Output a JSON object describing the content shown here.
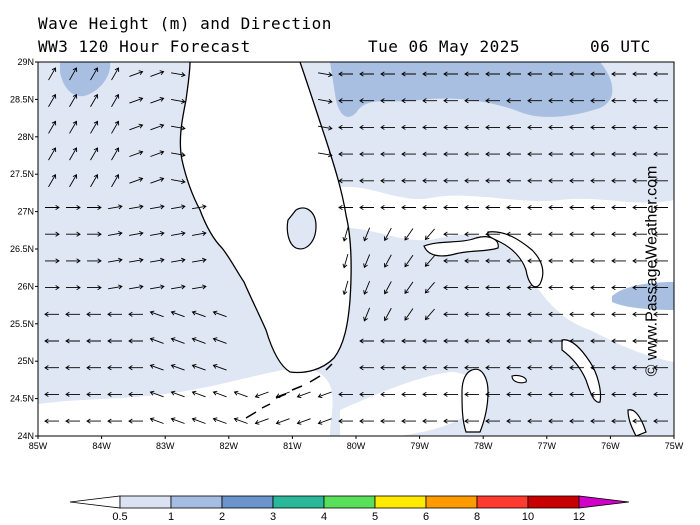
{
  "header": {
    "title": "Wave Height (m) and Direction",
    "subtitle": "WW3 120 Hour Forecast",
    "date": "Tue 06 May 2025",
    "time": "06 UTC"
  },
  "credit": "© www.PassageWeather.com",
  "map": {
    "lat_ticks": [
      "29N",
      "28.5N",
      "28N",
      "27.5N",
      "27N",
      "26.5N",
      "26N",
      "25.5N",
      "25N",
      "24.5N",
      "24N"
    ],
    "lon_ticks": [
      "85W",
      "84W",
      "83W",
      "82W",
      "81W",
      "80W",
      "79W",
      "78W",
      "77W",
      "76W",
      "75W"
    ],
    "extent": {
      "lon_min": -85,
      "lon_max": -75,
      "lat_min": 24,
      "lat_max": 29
    }
  },
  "colorbar": {
    "labels": [
      "0.5",
      "1",
      "2",
      "3",
      "4",
      "5",
      "6",
      "8",
      "10",
      "12"
    ],
    "colors": [
      "#ffffff",
      "#dbe3f3",
      "#a5bde0",
      "#6b94cd",
      "#2bb79a",
      "#59e05a",
      "#ffea00",
      "#ff9a00",
      "#ff3b2f",
      "#c80000",
      "#d000c8"
    ]
  },
  "colors": {
    "sea_light": "#dfe6f4",
    "sea_mid": "#a8bfe1",
    "land": "#ffffff"
  }
}
